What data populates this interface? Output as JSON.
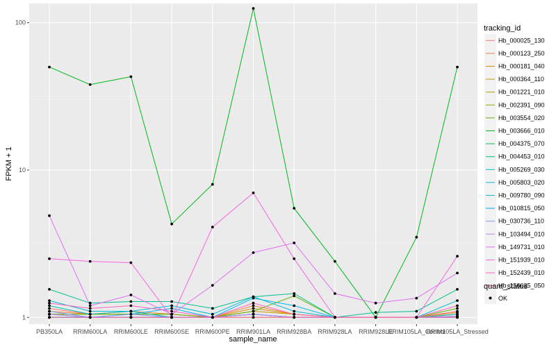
{
  "chart_data": {
    "type": "line",
    "xlabel": "sample_name",
    "ylabel": "FPKM + 1",
    "y_scale": "log10",
    "ylim": [
      0.9,
      135
    ],
    "y_ticks": [
      1,
      10,
      100
    ],
    "y_tick_labels": [
      "1",
      "10",
      "100"
    ],
    "grid": true,
    "legend_position": "right",
    "categories": [
      "PB350LA",
      "RRIM600LA",
      "RRIM600LE",
      "RRIM600SE",
      "RRIM600PE",
      "RRIM901LA",
      "RRIM928BA",
      "RRIM928LA",
      "RRIM928LE",
      "RRIM105LA_Control",
      "RRIM105LA_Stressed"
    ],
    "legend_title": "tracking_id",
    "point_legend_title": "quant_status",
    "point_legend_label": "OK",
    "series": [
      {
        "name": "Hb_000025_130",
        "color": "#F8766D",
        "values": [
          1.15,
          1.05,
          1.1,
          1.0,
          1.0,
          1.05,
          1.0,
          1.0,
          1.0,
          1.0,
          1.1
        ]
      },
      {
        "name": "Hb_000123_250",
        "color": "#EC8239",
        "values": [
          1.1,
          1.05,
          1.1,
          1.05,
          1.0,
          1.2,
          1.05,
          1.0,
          1.0,
          1.0,
          1.08
        ]
      },
      {
        "name": "Hb_000181_040",
        "color": "#DB8E00",
        "values": [
          1.0,
          1.0,
          1.0,
          1.0,
          1.0,
          1.15,
          1.05,
          1.0,
          1.0,
          1.0,
          1.05
        ]
      },
      {
        "name": "Hb_000364_110",
        "color": "#C79800",
        "values": [
          1.05,
          1.05,
          1.05,
          1.05,
          1.0,
          1.1,
          1.05,
          1.0,
          1.0,
          1.0,
          1.02
        ]
      },
      {
        "name": "Hb_001221_010",
        "color": "#AEA200",
        "values": [
          1.0,
          1.0,
          1.0,
          1.0,
          1.0,
          1.0,
          1.0,
          1.0,
          1.0,
          1.0,
          1.0
        ]
      },
      {
        "name": "Hb_002391_090",
        "color": "#8FAA00",
        "values": [
          1.0,
          1.0,
          1.0,
          1.0,
          1.0,
          1.05,
          1.0,
          1.0,
          1.0,
          1.0,
          1.0
        ]
      },
      {
        "name": "Hb_003554_020",
        "color": "#64B200",
        "values": [
          1.05,
          1.05,
          1.05,
          1.05,
          1.0,
          1.1,
          1.4,
          1.0,
          1.0,
          1.0,
          1.15
        ]
      },
      {
        "name": "Hb_003666_010",
        "color": "#00B81B",
        "values": [
          50,
          38,
          43,
          4.3,
          8,
          125,
          5.5,
          2.4,
          1.0,
          3.5,
          50
        ]
      },
      {
        "name": "Hb_004375_070",
        "color": "#00BD5C",
        "values": [
          1.05,
          1.0,
          1.0,
          1.0,
          1.0,
          1.05,
          1.0,
          1.0,
          1.0,
          1.0,
          1.0
        ]
      },
      {
        "name": "Hb_004453_010",
        "color": "#00C08E",
        "values": [
          1.55,
          1.25,
          1.28,
          1.28,
          1.15,
          1.38,
          1.45,
          1.0,
          1.08,
          1.1,
          1.55
        ]
      },
      {
        "name": "Hb_005269_030",
        "color": "#00C1B7",
        "values": [
          1.2,
          1.05,
          1.1,
          1.0,
          1.0,
          1.05,
          1.0,
          1.0,
          1.0,
          1.0,
          1.05
        ]
      },
      {
        "name": "Hb_005803_020",
        "color": "#00BDD4",
        "values": [
          1.3,
          1.1,
          1.1,
          1.2,
          1.05,
          1.38,
          1.1,
          1.0,
          1.0,
          1.0,
          1.3
        ]
      },
      {
        "name": "Hb_009780_090",
        "color": "#00B5EE",
        "values": [
          1.0,
          1.0,
          1.05,
          1.15,
          1.0,
          1.35,
          1.2,
          1.0,
          1.0,
          1.0,
          1.0
        ]
      },
      {
        "name": "Hb_010815_050",
        "color": "#00A7FF",
        "values": [
          1.0,
          1.0,
          1.0,
          1.0,
          1.0,
          1.05,
          1.0,
          1.0,
          1.0,
          1.0,
          1.0
        ]
      },
      {
        "name": "Hb_030736_110",
        "color": "#7F96FF",
        "values": [
          1.1,
          1.0,
          1.05,
          1.0,
          1.0,
          1.05,
          1.0,
          1.0,
          1.0,
          1.0,
          1.0
        ]
      },
      {
        "name": "Hb_103494_010",
        "color": "#BC81FF",
        "values": [
          1.05,
          1.0,
          1.0,
          1.0,
          1.0,
          1.05,
          1.0,
          1.0,
          1.0,
          1.0,
          1.02
        ]
      },
      {
        "name": "Hb_149731_010",
        "color": "#E26EF7",
        "values": [
          4.9,
          1.2,
          1.42,
          1.05,
          1.65,
          2.75,
          3.2,
          1.45,
          1.25,
          1.35,
          2.0
        ]
      },
      {
        "name": "Hb_151939_010",
        "color": "#F863DF",
        "values": [
          2.5,
          2.4,
          2.35,
          1.0,
          4.1,
          7.0,
          2.5,
          1.0,
          1.0,
          1.0,
          2.6
        ]
      },
      {
        "name": "Hb_152439_010",
        "color": "#FF62BF",
        "values": [
          1.25,
          1.15,
          1.2,
          1.1,
          1.0,
          1.25,
          1.05,
          1.0,
          1.0,
          1.0,
          1.2
        ]
      },
      {
        "name": "Hb_156635_050",
        "color": "#FF6A9A",
        "values": [
          1.0,
          1.0,
          1.0,
          1.0,
          1.0,
          1.0,
          1.0,
          1.0,
          1.0,
          1.0,
          1.0
        ]
      }
    ]
  }
}
